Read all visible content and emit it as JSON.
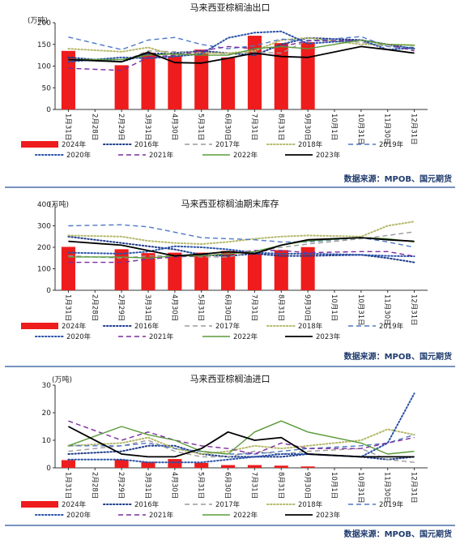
{
  "colors": {
    "y2024": "#ee1c1c",
    "y2016": "#1f3d8c",
    "y2017": "#9a9a9a",
    "y2018": "#b5b86a",
    "y2019": "#4f79c4",
    "y2020": "#2a52a8",
    "y2021": "#7b2b9e",
    "y2022": "#5a9a3a",
    "y2023": "#000000",
    "divider": "#4a6ea8",
    "source": "#1f3b6e"
  },
  "source_text": "数据来源：MPOB、国元期货",
  "chart_data": [
    {
      "type": "bar",
      "title": "马来西亚棕榈油出口",
      "unit": "(万吨)",
      "ylim": [
        0,
        200
      ],
      "yticks": [
        0,
        50,
        100,
        150,
        200
      ],
      "categories": [
        "1月31日",
        "2月28日",
        "2月29日",
        "3月31日",
        "4月30日",
        "5月31日",
        "6月30日",
        "7月31日",
        "8月31日",
        "9月30日",
        "10月1日",
        "10月31日",
        "11月30日",
        "12月31日"
      ],
      "legend": [
        {
          "name": "2024年",
          "key": "y2024",
          "style": "bar"
        },
        {
          "name": "2016年",
          "key": "y2016",
          "style": "dotted"
        },
        {
          "name": "2017年",
          "key": "y2017",
          "style": "dashed"
        },
        {
          "name": "2018年",
          "key": "y2018",
          "style": "dotted"
        },
        {
          "name": "2019年",
          "key": "y2019",
          "style": "dashed"
        },
        {
          "name": "2020年",
          "key": "y2020",
          "style": "dotted"
        },
        {
          "name": "2021年",
          "key": "y2021",
          "style": "dashed"
        },
        {
          "name": "2022年",
          "key": "y2022",
          "style": "solid"
        },
        {
          "name": "2023年",
          "key": "y2023",
          "style": "solid-bold"
        }
      ],
      "bars": {
        "key": "y2024",
        "values": [
          135,
          null,
          102,
          131,
          123,
          138,
          120,
          170,
          153,
          155,
          null,
          null,
          null,
          null
        ]
      },
      "series": [
        {
          "key": "y2016",
          "style": "dotted",
          "values": [
            120,
            null,
            110,
            128,
            130,
            135,
            130,
            125,
            150,
            165,
            null,
            160,
            150,
            140
          ]
        },
        {
          "key": "y2017",
          "style": "dashed",
          "values": [
            115,
            null,
            110,
            135,
            133,
            132,
            128,
            132,
            130,
            160,
            null,
            155,
            145,
            138
          ]
        },
        {
          "key": "y2018",
          "style": "dotted",
          "values": [
            140,
            null,
            133,
            143,
            125,
            130,
            130,
            135,
            160,
            165,
            null,
            150,
            150,
            148
          ]
        },
        {
          "key": "y2019",
          "style": "dashed",
          "values": [
            167,
            null,
            138,
            160,
            166,
            150,
            140,
            147,
            162,
            158,
            null,
            168,
            145,
            143
          ]
        },
        {
          "key": "y2020",
          "style": "dotted",
          "values": [
            110,
            null,
            120,
            118,
            122,
            128,
            165,
            177,
            180,
            152,
            null,
            160,
            138,
            142
          ]
        },
        {
          "key": "y2021",
          "style": "dashed",
          "values": [
            95,
            null,
            90,
            120,
            125,
            135,
            145,
            140,
            145,
            158,
            null,
            160,
            150,
            135
          ]
        },
        {
          "key": "y2022",
          "style": "solid",
          "values": [
            115,
            null,
            115,
            125,
            128,
            125,
            125,
            140,
            145,
            140,
            null,
            160,
            150,
            148
          ]
        },
        {
          "key": "y2023",
          "style": "solid-bold",
          "values": [
            115,
            null,
            110,
            132,
            108,
            107,
            118,
            130,
            122,
            120,
            null,
            145,
            138,
            130
          ]
        }
      ]
    },
    {
      "type": "bar",
      "title": "马来西亚棕榈油期末库存",
      "unit": "(万吨)",
      "ylim": [
        0,
        400
      ],
      "yticks": [
        0,
        100,
        200,
        300,
        400
      ],
      "categories": [
        "1月31日",
        "2月28日",
        "2月29日",
        "3月31日",
        "4月30日",
        "5月31日",
        "6月30日",
        "7月31日",
        "8月31日",
        "9月30日",
        "10月1日",
        "10月31日",
        "11月30日",
        "12月31日"
      ],
      "legend": [
        {
          "name": "2024年",
          "key": "y2024",
          "style": "bar"
        },
        {
          "name": "2016年",
          "key": "y2016",
          "style": "dotted"
        },
        {
          "name": "2017年",
          "key": "y2017",
          "style": "dashed"
        },
        {
          "name": "2018年",
          "key": "y2018",
          "style": "dotted"
        },
        {
          "name": "2019年",
          "key": "y2019",
          "style": "dashed"
        },
        {
          "name": "2020年",
          "key": "y2020",
          "style": "dotted"
        },
        {
          "name": "2021年",
          "key": "y2021",
          "style": "dashed"
        },
        {
          "name": "2022年",
          "key": "y2022",
          "style": "solid"
        },
        {
          "name": "2023年",
          "key": "y2023",
          "style": "solid-bold"
        }
      ],
      "bars": {
        "key": "y2024",
        "values": [
          202,
          null,
          191,
          173,
          175,
          175,
          183,
          173,
          187,
          201,
          null,
          null,
          null,
          null
        ]
      },
      "series": [
        {
          "key": "y2016",
          "style": "dotted",
          "values": [
            250,
            null,
            220,
            205,
            190,
            165,
            160,
            170,
            160,
            160,
            null,
            165,
            150,
            130
          ]
        },
        {
          "key": "y2017",
          "style": "dashed",
          "values": [
            160,
            null,
            150,
            160,
            160,
            155,
            155,
            180,
            200,
            215,
            null,
            240,
            255,
            272
          ]
        },
        {
          "key": "y2018",
          "style": "dotted",
          "values": [
            255,
            null,
            250,
            230,
            220,
            215,
            225,
            240,
            250,
            255,
            null,
            250,
            300,
            320
          ]
        },
        {
          "key": "y2019",
          "style": "dashed",
          "values": [
            300,
            null,
            305,
            295,
            270,
            245,
            240,
            235,
            225,
            225,
            null,
            245,
            225,
            200
          ]
        },
        {
          "key": "y2020",
          "style": "dotted",
          "values": [
            175,
            null,
            170,
            180,
            205,
            200,
            190,
            175,
            170,
            170,
            null,
            165,
            160,
            158
          ]
        },
        {
          "key": "y2021",
          "style": "dashed",
          "values": [
            130,
            null,
            130,
            145,
            155,
            160,
            170,
            185,
            185,
            175,
            null,
            180,
            180,
            158
          ]
        },
        {
          "key": "y2022",
          "style": "solid",
          "values": [
            155,
            null,
            155,
            150,
            160,
            160,
            170,
            180,
            210,
            230,
            null,
            245,
            240,
            225
          ]
        },
        {
          "key": "y2023",
          "style": "solid-bold",
          "values": [
            228,
            null,
            210,
            185,
            160,
            168,
            180,
            170,
            210,
            235,
            null,
            245,
            235,
            228
          ]
        }
      ]
    },
    {
      "type": "bar",
      "title": "马来西亚棕榈油进口",
      "unit": "(万吨)",
      "ylim": [
        0,
        30
      ],
      "yticks": [
        0,
        10,
        20,
        30
      ],
      "categories": [
        "1月31日",
        "2月28日",
        "2月29日",
        "3月31日",
        "4月30日",
        "5月31日",
        "6月30日",
        "7月31日",
        "8月31日",
        "9月30日",
        "10月1日",
        "10月31日",
        "11月30日",
        "12月31日"
      ],
      "legend": [
        {
          "name": "2024年",
          "key": "y2024",
          "style": "bar"
        },
        {
          "name": "2016年",
          "key": "y2016",
          "style": "dotted"
        },
        {
          "name": "2017年",
          "key": "y2017",
          "style": "dashed"
        },
        {
          "name": "2018年",
          "key": "y2018",
          "style": "dotted"
        },
        {
          "name": "2019年",
          "key": "y2019",
          "style": "dashed"
        },
        {
          "name": "2020年",
          "key": "y2020",
          "style": "dotted"
        },
        {
          "name": "2021年",
          "key": "y2021",
          "style": "dashed"
        },
        {
          "name": "2022年",
          "key": "y2022",
          "style": "solid"
        },
        {
          "name": "2023年",
          "key": "y2023",
          "style": "solid-bold"
        }
      ],
      "bars": {
        "key": "y2024",
        "values": [
          2.8,
          null,
          3.0,
          2.2,
          3.2,
          1.8,
          1.0,
          1.0,
          0.8,
          0.5,
          null,
          null,
          null,
          null
        ]
      },
      "series": [
        {
          "key": "y2016",
          "style": "dotted",
          "values": [
            5,
            null,
            6,
            8,
            8,
            5,
            4,
            4,
            4,
            5,
            null,
            4,
            3,
            4
          ]
        },
        {
          "key": "y2017",
          "style": "dashed",
          "values": [
            6,
            null,
            8,
            10,
            6,
            4,
            4,
            6,
            5,
            6,
            null,
            7,
            3,
            2
          ]
        },
        {
          "key": "y2018",
          "style": "dotted",
          "values": [
            8,
            null,
            9,
            11,
            7,
            5,
            6,
            8,
            7,
            8,
            null,
            10,
            14,
            12
          ]
        },
        {
          "key": "y2019",
          "style": "dashed",
          "values": [
            8,
            null,
            8,
            9,
            7,
            6,
            5,
            5,
            6,
            7,
            null,
            8,
            9,
            12
          ]
        },
        {
          "key": "y2020",
          "style": "dotted",
          "values": [
            3,
            null,
            3,
            2,
            2,
            2,
            3,
            4,
            5,
            5,
            null,
            4,
            9,
            27
          ]
        },
        {
          "key": "y2021",
          "style": "dashed",
          "values": [
            17,
            null,
            10,
            13,
            10,
            8,
            7,
            5,
            9,
            7,
            null,
            7,
            9,
            11
          ]
        },
        {
          "key": "y2022",
          "style": "solid",
          "values": [
            8,
            null,
            15,
            12,
            10,
            6,
            5,
            13,
            17,
            13,
            null,
            9,
            5,
            6
          ]
        },
        {
          "key": "y2023",
          "style": "solid-bold",
          "values": [
            15,
            null,
            5,
            4,
            4,
            7,
            13,
            10,
            11,
            5,
            null,
            4,
            4,
            4
          ]
        }
      ]
    }
  ]
}
